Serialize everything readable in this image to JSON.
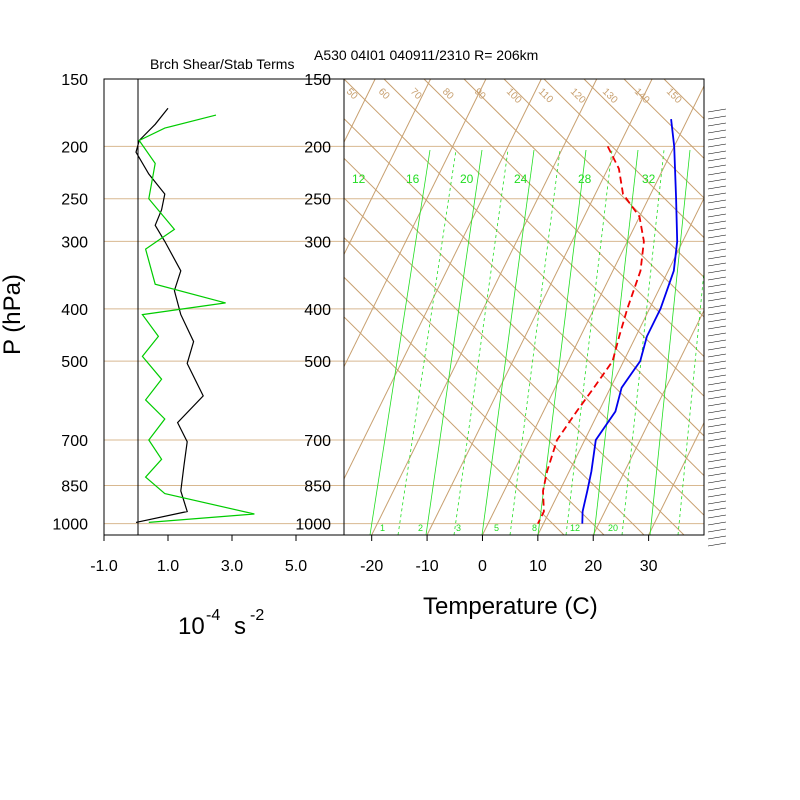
{
  "left_panel": {
    "title": "Brch Shear/Stab Terms",
    "xunit": "10",
    "xunit_exp": "-4",
    "xunit_s": "s",
    "xunit_s_exp": "-2"
  },
  "right_panel": {
    "title": "A530 04I01 040911/2310 R= 206km",
    "xlabel": "Temperature (C)"
  },
  "ylabel": "P (hPa)",
  "colors": {
    "highlight": "#ff66ff",
    "temp": "#0000ee",
    "dewpoint": "#ee0000",
    "grid": "#d8b890",
    "skew": "#c8a070",
    "mixing": "#22dd22",
    "shear": "#00cc00",
    "stab": "#000000"
  },
  "chart_data": [
    {
      "type": "line",
      "panel": "shear-stability",
      "title": "Brch Shear/Stab Terms",
      "xlim": [
        -1.0,
        6.5
      ],
      "xticks": [
        "-1.0",
        "1.0",
        "3.0",
        "5.0"
      ],
      "xtick_values": [
        -1.0,
        1.0,
        3.0,
        5.0
      ],
      "yscale": "log",
      "ylim": [
        1050,
        150
      ],
      "yticks": [
        150,
        200,
        250,
        300,
        400,
        500,
        700,
        850,
        1000
      ],
      "series": [
        {
          "color": "black",
          "points": [
            [
              1.0,
              170
            ],
            [
              0.6,
              182
            ],
            [
              0.1,
              195
            ],
            [
              0.0,
              205
            ],
            [
              0.4,
              225
            ],
            [
              0.9,
              245
            ],
            [
              0.8,
              262
            ],
            [
              0.6,
              280
            ],
            [
              0.9,
              300
            ],
            [
              1.4,
              340
            ],
            [
              1.2,
              370
            ],
            [
              1.4,
              410
            ],
            [
              1.8,
              460
            ],
            [
              1.6,
              505
            ],
            [
              2.1,
              580
            ],
            [
              1.3,
              650
            ],
            [
              1.6,
              705
            ],
            [
              1.5,
              780
            ],
            [
              1.4,
              870
            ],
            [
              1.6,
              950
            ],
            [
              0.0,
              995
            ]
          ]
        },
        {
          "color": "green",
          "points": [
            [
              2.5,
              175
            ],
            [
              0.9,
              185
            ],
            [
              0.1,
              195
            ],
            [
              0.6,
              215
            ],
            [
              0.4,
              250
            ],
            [
              1.2,
              285
            ],
            [
              0.3,
              310
            ],
            [
              0.6,
              360
            ],
            [
              2.8,
              390
            ],
            [
              0.2,
              410
            ],
            [
              0.7,
              450
            ],
            [
              0.2,
              490
            ],
            [
              0.8,
              540
            ],
            [
              0.3,
              590
            ],
            [
              0.9,
              640
            ],
            [
              0.4,
              700
            ],
            [
              0.8,
              760
            ],
            [
              0.3,
              820
            ],
            [
              0.9,
              880
            ],
            [
              3.7,
              960
            ],
            [
              0.4,
              995
            ]
          ]
        }
      ]
    },
    {
      "type": "line",
      "panel": "skew-t",
      "title": "A530 04I01 040911/2310 R= 206km",
      "xlabel": "Temperature (C)",
      "ylabel": "P (hPa)",
      "xlim": [
        -25,
        40
      ],
      "xticks": [
        -20,
        -10,
        0,
        10,
        20,
        30
      ],
      "yscale": "log",
      "ylim": [
        1050,
        150
      ],
      "yticks": [
        150,
        200,
        250,
        300,
        400,
        500,
        700,
        850,
        1000
      ],
      "highlight_band_hpa": [
        190,
        205
      ],
      "mixing_ratio_labels": [
        "12",
        "16",
        "20",
        "24",
        "28",
        "32"
      ],
      "dry_adiabat_labels": [
        "50",
        "60",
        "70",
        "80",
        "90",
        "100",
        "110",
        "120",
        "130",
        "140",
        "150"
      ],
      "bottom_labels": [
        "1",
        "2",
        "3",
        "5",
        "8",
        "12",
        "20"
      ],
      "series": [
        {
          "name": "temperature",
          "color": "blue",
          "points": [
            [
              -3,
              178
            ],
            [
              0,
              200
            ],
            [
              5,
              250
            ],
            [
              9,
              300
            ],
            [
              11,
              340
            ],
            [
              12,
              400
            ],
            [
              12,
              450
            ],
            [
              13,
              500
            ],
            [
              12,
              560
            ],
            [
              13,
              620
            ],
            [
              12,
              700
            ],
            [
              14,
              800
            ],
            [
              15,
              870
            ],
            [
              16,
              950
            ],
            [
              17,
              1000
            ]
          ]
        },
        {
          "name": "dewpoint",
          "color": "red",
          "points": [
            [
              -12,
              200
            ],
            [
              -8,
              220
            ],
            [
              -5,
              245
            ],
            [
              0,
              270
            ],
            [
              3,
              300
            ],
            [
              5,
              340
            ],
            [
              6,
              400
            ],
            [
              7,
              450
            ],
            [
              8,
              500
            ],
            [
              7,
              560
            ],
            [
              6,
              620
            ],
            [
              5,
              700
            ],
            [
              6,
              800
            ],
            [
              7,
              870
            ],
            [
              9,
              950
            ],
            [
              9,
              1000
            ]
          ]
        }
      ]
    }
  ]
}
